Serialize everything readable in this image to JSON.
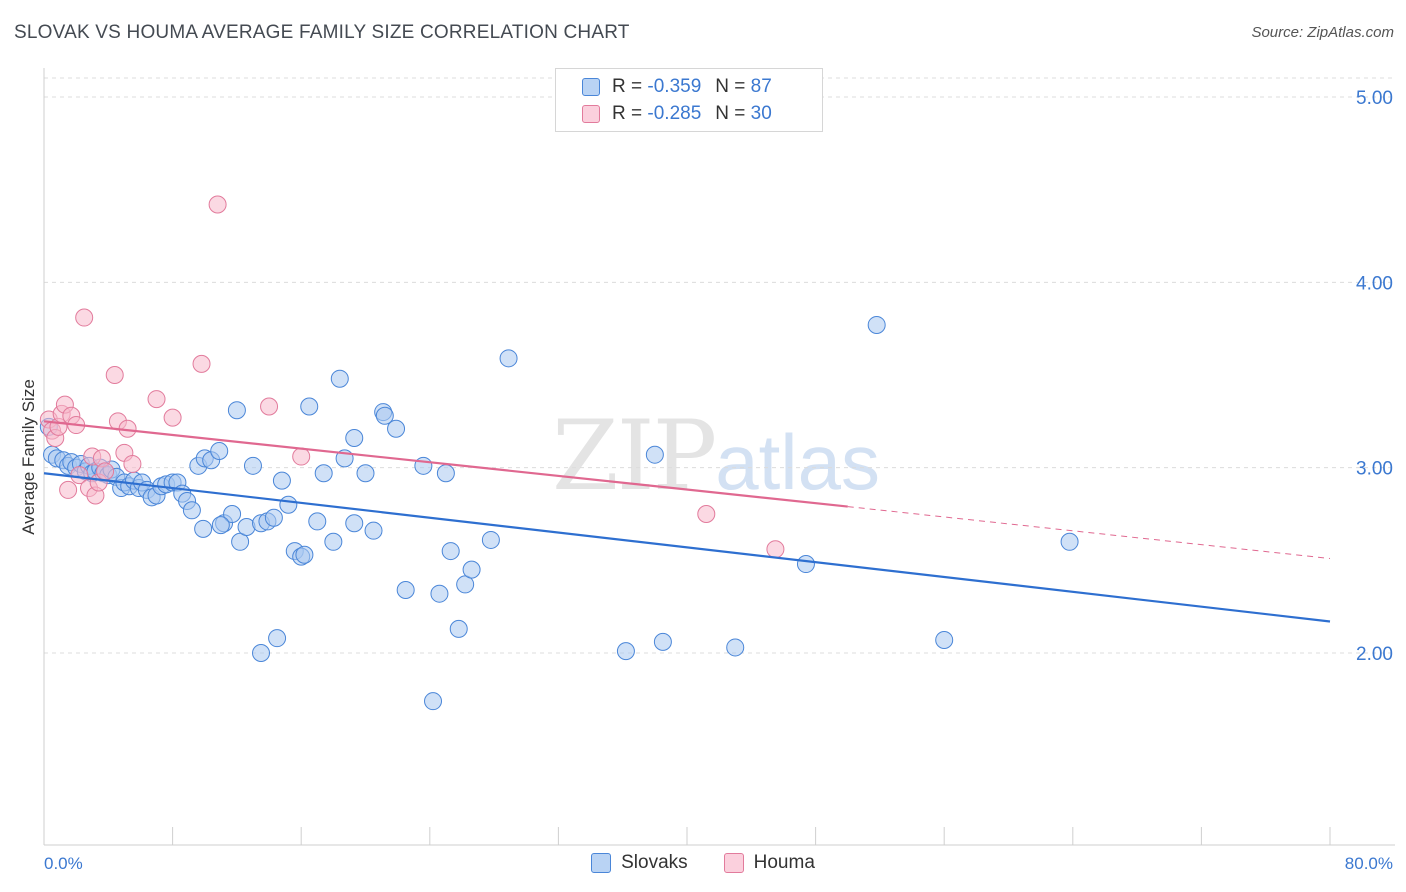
{
  "title": "SLOVAK VS HOUMA AVERAGE FAMILY SIZE CORRELATION CHART",
  "source": "Source: ZipAtlas.com",
  "watermark": {
    "zip": "ZIP",
    "atlas": "atlas"
  },
  "legend": {
    "r_label": "R =",
    "n_label": "N =",
    "rows": [
      {
        "series": "Slovaks",
        "r": "-0.359",
        "n": "87"
      },
      {
        "series": "Houma",
        "r": "-0.285",
        "n": "30"
      }
    ]
  },
  "colors": {
    "slovaks_fill": "#a9c8f0",
    "slovaks_stroke": "#4a86d8",
    "slovaks_line": "#2e6fd0",
    "houma_fill": "#f7b9cc",
    "houma_stroke": "#e27b9c",
    "houma_line": "#e06890",
    "tick_text": "#3b78d0"
  },
  "chart_data": {
    "type": "scatter",
    "title": "SLOVAK VS HOUMA AVERAGE FAMILY SIZE CORRELATION CHART",
    "xlabel": "",
    "ylabel": "Average Family Size",
    "xlim": [
      0,
      80
    ],
    "ylim": [
      1.0,
      5.1
    ],
    "x_tick_labels": [
      "0.0%",
      "80.0%"
    ],
    "y_ticks": [
      2.0,
      3.0,
      4.0,
      5.0
    ],
    "y_tick_labels": [
      "2.00",
      "3.00",
      "4.00",
      "5.00"
    ],
    "grid": true,
    "series": [
      {
        "name": "Slovaks",
        "trend": {
          "x": [
            0,
            80
          ],
          "y": [
            2.97,
            2.17
          ]
        },
        "points": [
          [
            0.3,
            3.22
          ],
          [
            0.5,
            3.07
          ],
          [
            0.8,
            3.05
          ],
          [
            1.2,
            3.04
          ],
          [
            1.5,
            3.01
          ],
          [
            1.7,
            3.03
          ],
          [
            2.0,
            3.0
          ],
          [
            2.3,
            3.02
          ],
          [
            2.6,
            2.98
          ],
          [
            2.8,
            3.01
          ],
          [
            3.0,
            2.97
          ],
          [
            3.2,
            2.98
          ],
          [
            3.5,
            3.0
          ],
          [
            3.7,
            2.97
          ],
          [
            4.0,
            2.96
          ],
          [
            4.2,
            2.99
          ],
          [
            4.5,
            2.95
          ],
          [
            4.8,
            2.89
          ],
          [
            5.0,
            2.92
          ],
          [
            5.3,
            2.9
          ],
          [
            5.6,
            2.93
          ],
          [
            5.9,
            2.89
          ],
          [
            6.1,
            2.92
          ],
          [
            6.4,
            2.88
          ],
          [
            6.7,
            2.84
          ],
          [
            7.0,
            2.85
          ],
          [
            7.3,
            2.9
          ],
          [
            7.6,
            2.91
          ],
          [
            8.0,
            2.92
          ],
          [
            8.3,
            2.92
          ],
          [
            8.6,
            2.86
          ],
          [
            8.9,
            2.82
          ],
          [
            9.2,
            2.77
          ],
          [
            9.6,
            3.01
          ],
          [
            10.0,
            3.05
          ],
          [
            10.4,
            3.04
          ],
          [
            10.9,
            3.09
          ],
          [
            11.2,
            2.7
          ],
          [
            11.7,
            2.75
          ],
          [
            12.2,
            2.6
          ],
          [
            12.6,
            2.68
          ],
          [
            13.0,
            3.01
          ],
          [
            13.5,
            2.7
          ],
          [
            13.9,
            2.71
          ],
          [
            14.3,
            2.73
          ],
          [
            14.8,
            2.93
          ],
          [
            15.2,
            2.8
          ],
          [
            15.6,
            2.55
          ],
          [
            16.0,
            2.52
          ],
          [
            16.5,
            3.33
          ],
          [
            17.0,
            2.71
          ],
          [
            17.4,
            2.97
          ],
          [
            18.0,
            2.6
          ],
          [
            18.7,
            3.05
          ],
          [
            19.3,
            3.16
          ],
          [
            20.0,
            2.97
          ],
          [
            20.5,
            2.66
          ],
          [
            21.1,
            3.3
          ],
          [
            21.2,
            3.28
          ],
          [
            21.9,
            3.21
          ],
          [
            22.5,
            2.34
          ],
          [
            23.6,
            3.01
          ],
          [
            24.2,
            1.74
          ],
          [
            24.6,
            2.32
          ],
          [
            25.3,
            2.55
          ],
          [
            25.8,
            2.13
          ],
          [
            26.2,
            2.37
          ],
          [
            26.6,
            2.45
          ],
          [
            9.9,
            2.67
          ],
          [
            11.0,
            2.69
          ],
          [
            12.0,
            3.31
          ],
          [
            13.5,
            2.0
          ],
          [
            14.5,
            2.08
          ],
          [
            16.2,
            2.53
          ],
          [
            18.4,
            3.48
          ],
          [
            19.3,
            2.7
          ],
          [
            25.0,
            2.97
          ],
          [
            27.8,
            2.61
          ],
          [
            28.9,
            3.59
          ],
          [
            36.2,
            2.01
          ],
          [
            38.5,
            2.06
          ],
          [
            38.0,
            3.07
          ],
          [
            43.0,
            2.03
          ],
          [
            47.4,
            2.48
          ],
          [
            51.8,
            3.77
          ],
          [
            56.0,
            2.07
          ],
          [
            63.8,
            2.6
          ]
        ]
      },
      {
        "name": "Houma",
        "trend": {
          "x": [
            0,
            50
          ],
          "y": [
            3.25,
            2.79
          ]
        },
        "trend_dashed": {
          "x": [
            50,
            80
          ],
          "y": [
            2.79,
            2.51
          ]
        },
        "points": [
          [
            0.3,
            3.26
          ],
          [
            0.5,
            3.2
          ],
          [
            0.7,
            3.16
          ],
          [
            0.9,
            3.22
          ],
          [
            1.1,
            3.29
          ],
          [
            1.3,
            3.34
          ],
          [
            1.5,
            2.88
          ],
          [
            1.7,
            3.28
          ],
          [
            2.0,
            3.23
          ],
          [
            2.2,
            2.96
          ],
          [
            2.5,
            3.81
          ],
          [
            2.8,
            2.89
          ],
          [
            3.0,
            3.06
          ],
          [
            3.2,
            2.85
          ],
          [
            3.4,
            2.92
          ],
          [
            3.6,
            3.05
          ],
          [
            3.8,
            2.98
          ],
          [
            4.4,
            3.5
          ],
          [
            4.6,
            3.25
          ],
          [
            5.0,
            3.08
          ],
          [
            5.2,
            3.21
          ],
          [
            5.5,
            3.02
          ],
          [
            7.0,
            3.37
          ],
          [
            8.0,
            3.27
          ],
          [
            9.8,
            3.56
          ],
          [
            10.8,
            4.42
          ],
          [
            14.0,
            3.33
          ],
          [
            16.0,
            3.06
          ],
          [
            41.2,
            2.75
          ],
          [
            45.5,
            2.56
          ]
        ]
      }
    ]
  }
}
